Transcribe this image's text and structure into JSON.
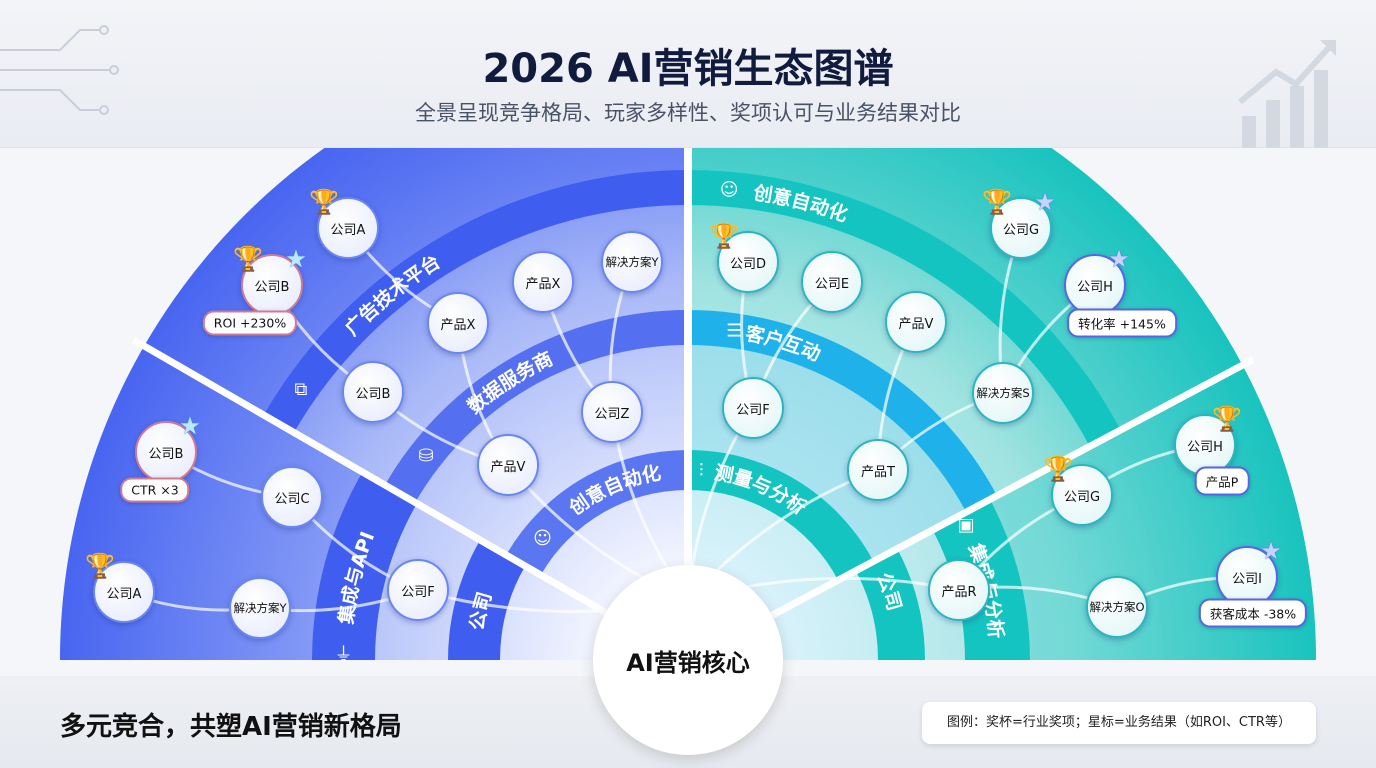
{
  "header": {
    "title": "2026 AI营销生态图谱",
    "subtitle": "全景呈现竞争格局、玩家多样性、奖项认可与业务结果对比"
  },
  "center_label": "AI营销核心",
  "rings": [
    {
      "label": "广告技术平台",
      "icon": "hierarchy-icon"
    },
    {
      "label": "数据服务商",
      "icon": "database-icon"
    },
    {
      "label": "创意自动化",
      "icon": "robot-icon"
    },
    {
      "label": "集成与API",
      "icon": "plug-icon"
    },
    {
      "label": "公司",
      "icon": ""
    },
    {
      "label": "创意自动化",
      "icon": "robot-icon"
    },
    {
      "label": "客户互动",
      "icon": "chat-icon"
    },
    {
      "label": "测量与分析",
      "icon": "chart-icon"
    },
    {
      "label": "集成与分析",
      "icon": "integration-icon"
    },
    {
      "label": "公司",
      "icon": ""
    }
  ],
  "nodes": [
    {
      "label": "公司A",
      "award": true
    },
    {
      "label": "公司B",
      "award": true,
      "star": true,
      "badge": "ROI +230%"
    },
    {
      "label": "产品X"
    },
    {
      "label": "产品X"
    },
    {
      "label": "解决方案Y"
    },
    {
      "label": "公司B"
    },
    {
      "label": "公司Z"
    },
    {
      "label": "产品V"
    },
    {
      "label": "公司B",
      "star": true,
      "badge": "CTR ×3"
    },
    {
      "label": "公司C"
    },
    {
      "label": "公司A",
      "award": true
    },
    {
      "label": "解决方案Y"
    },
    {
      "label": "公司F"
    },
    {
      "label": "公司D",
      "award": true
    },
    {
      "label": "公司E"
    },
    {
      "label": "产品V"
    },
    {
      "label": "公司G",
      "award": true,
      "star": true
    },
    {
      "label": "公司H",
      "star": true,
      "badge": "转化率 +145%"
    },
    {
      "label": "解决方案S"
    },
    {
      "label": "公司F"
    },
    {
      "label": "产品T"
    },
    {
      "label": "公司H",
      "award": true,
      "badge": "产品P"
    },
    {
      "label": "公司G",
      "award": true
    },
    {
      "label": "公司I",
      "star": true,
      "badge": "获客成本 -38%"
    },
    {
      "label": "产品R"
    },
    {
      "label": "解决方案O"
    }
  ],
  "footer": {
    "slogan": "多元竞合，共塑AI营销新格局",
    "legend": "图例：奖杯=行业奖项；星标=业务结果（如ROI、CTR等）"
  },
  "colors": {
    "left_accent": "#3f5ef0",
    "right_accent": "#14c4c0",
    "interaction": "#1fb2ea"
  }
}
